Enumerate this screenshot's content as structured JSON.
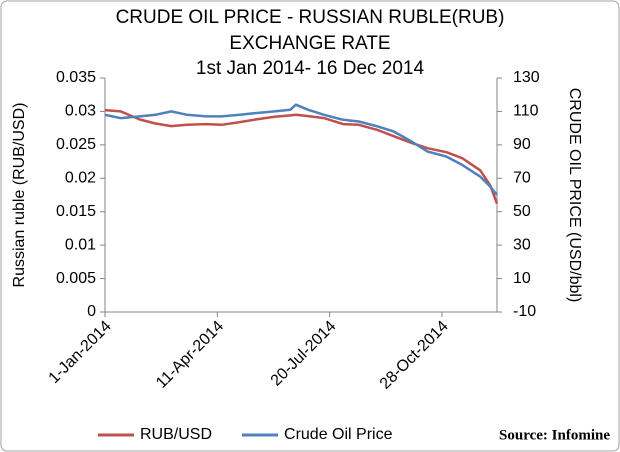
{
  "chart_data": {
    "type": "line",
    "title": [
      "CRUDE OIL PRICE -  RUSSIAN RUBLE(RUB)",
      "EXCHANGE RATE",
      "1st Jan 2014- 16 Dec 2014"
    ],
    "y_label": "Russian ruble (RUB/USD)",
    "y2_label": "CRUDE OIL PRICE   (USD/bbl)",
    "source": "Source: Infomine",
    "x": [
      "2014-01-01",
      "2014-01-15",
      "2014-02-01",
      "2014-02-15",
      "2014-03-01",
      "2014-03-15",
      "2014-04-01",
      "2014-04-15",
      "2014-05-01",
      "2014-05-15",
      "2014-06-01",
      "2014-06-15",
      "2014-06-20",
      "2014-07-01",
      "2014-07-15",
      "2014-08-01",
      "2014-08-15",
      "2014-09-01",
      "2014-09-15",
      "2014-10-01",
      "2014-10-15",
      "2014-11-01",
      "2014-11-15",
      "2014-12-01",
      "2014-12-10",
      "2014-12-16"
    ],
    "xlim": [
      "2014-01-01",
      "2014-12-16"
    ],
    "xticks": [
      {
        "value": "2014-01-01",
        "label": "1-Jan-2014"
      },
      {
        "value": "2014-04-11",
        "label": "11-Apr-2014"
      },
      {
        "value": "2014-07-20",
        "label": "20-Jul-2014"
      },
      {
        "value": "2014-10-28",
        "label": "28-Oct-2014"
      }
    ],
    "ylim": [
      0,
      0.035
    ],
    "yticks": [
      0,
      0.005,
      0.01,
      0.015,
      0.02,
      0.025,
      0.03,
      0.035
    ],
    "y2lim": [
      -10,
      130
    ],
    "y2ticks": [
      -10,
      10,
      30,
      50,
      70,
      90,
      110,
      130
    ],
    "series": [
      {
        "name": "RUB/USD",
        "color": "#c0504d",
        "values": [
          0.0302,
          0.03,
          0.0288,
          0.0282,
          0.0278,
          0.028,
          0.0281,
          0.028,
          0.0284,
          0.0288,
          0.0292,
          0.0294,
          0.0295,
          0.0293,
          0.029,
          0.0281,
          0.028,
          0.0272,
          0.0263,
          0.0253,
          0.0245,
          0.0239,
          0.023,
          0.0212,
          0.0189,
          0.0162
        ]
      },
      {
        "name": "Crude Oil Price",
        "color": "#4f81bd",
        "axis": "y2",
        "values": [
          108,
          106,
          107,
          108,
          110,
          108,
          107,
          107,
          108,
          109,
          110,
          111,
          114,
          111,
          108,
          105,
          104,
          101,
          98,
          92,
          86,
          83,
          78,
          71,
          65,
          60
        ]
      }
    ],
    "legend": "bottom"
  }
}
